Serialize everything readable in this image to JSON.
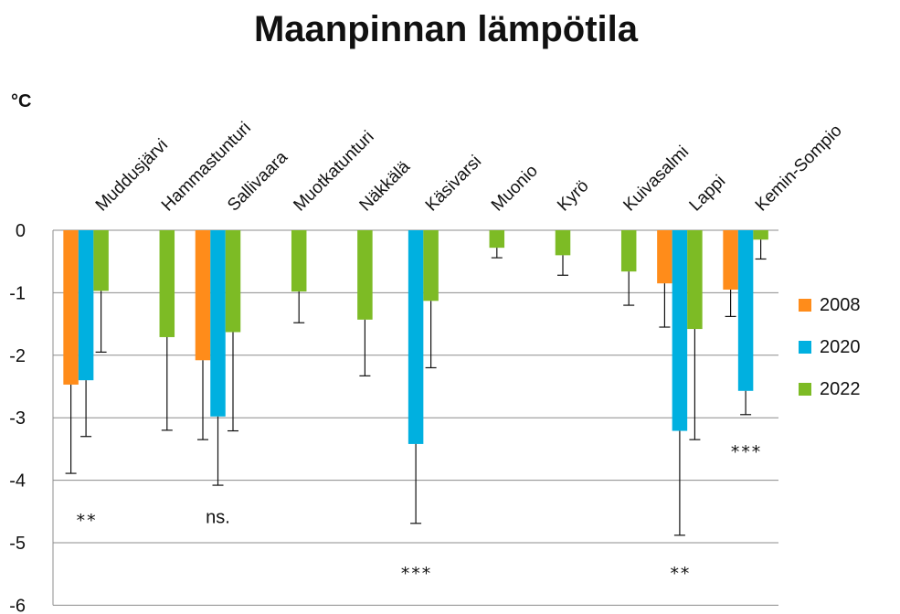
{
  "chart_data": {
    "type": "bar",
    "title": "Maanpinnan lämpötila",
    "ylabel": "°C",
    "xlabel": "",
    "ylim": [
      -6,
      0
    ],
    "yticks": [
      0,
      -1,
      -2,
      -3,
      -4,
      -5,
      -6
    ],
    "grid": true,
    "legend_position": "right",
    "categories": [
      "Muddusjärvi",
      "Hammastunturi",
      "Sallivaara",
      "Muotkatunturi",
      "Näkkälä",
      "Käsivarsi",
      "Muonio",
      "Kyrö",
      "Kuivasalmi",
      "Lappi",
      "Kemin-Sompio"
    ],
    "series": [
      {
        "name": "2008",
        "color": "#FF8C1A",
        "values": [
          -2.47,
          null,
          -2.08,
          null,
          null,
          null,
          null,
          null,
          null,
          -0.85,
          -0.95
        ],
        "errors": [
          1.42,
          null,
          1.27,
          null,
          null,
          null,
          null,
          null,
          null,
          0.7,
          0.43
        ]
      },
      {
        "name": "2020",
        "color": "#00B0E0",
        "values": [
          -2.4,
          null,
          -2.98,
          null,
          null,
          -3.42,
          null,
          null,
          null,
          -3.21,
          -2.57
        ],
        "errors": [
          0.9,
          null,
          1.1,
          null,
          null,
          1.27,
          null,
          null,
          null,
          1.67,
          0.38
        ]
      },
      {
        "name": "2022",
        "color": "#7DBB25",
        "values": [
          -0.97,
          -1.71,
          -1.63,
          -0.98,
          -1.43,
          -1.13,
          -0.28,
          -0.4,
          -0.66,
          -1.58,
          -0.15
        ],
        "errors": [
          0.98,
          1.49,
          1.58,
          0.5,
          0.9,
          1.07,
          0.16,
          0.32,
          0.54,
          1.77,
          0.31
        ]
      }
    ],
    "annotations": [
      {
        "text": "**",
        "category": "Muddusjärvi",
        "y": -4.65
      },
      {
        "text": "ns.",
        "category": "Sallivaara",
        "y": -4.6
      },
      {
        "text": "***",
        "category": "Käsivarsi",
        "y": -5.5
      },
      {
        "text": "**",
        "category": "Lappi",
        "y": -5.5
      },
      {
        "text": "***",
        "category": "Kemin-Sompio",
        "y": -3.55
      }
    ]
  }
}
